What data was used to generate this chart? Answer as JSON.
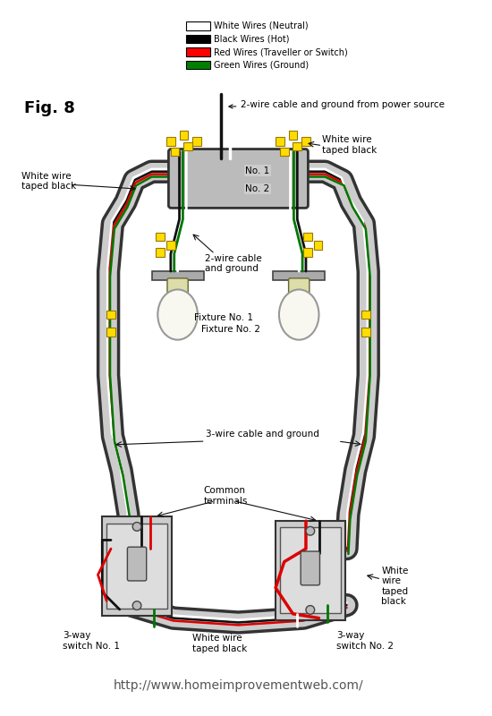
{
  "bg_color": "#ffffff",
  "legend": [
    {
      "color": "#ffffff",
      "label": "White Wires (Neutral)",
      "edge": "#000000"
    },
    {
      "color": "#000000",
      "label": "Black Wires (Hot)",
      "edge": "#000000"
    },
    {
      "color": "#ff0000",
      "label": "Red Wires (Traveller or Switch)",
      "edge": "#000000"
    },
    {
      "color": "#008000",
      "label": "Green Wires (Ground)",
      "edge": "#000000"
    }
  ],
  "wire_colors": {
    "white": "#ffffff",
    "black": "#111111",
    "red": "#dd0000",
    "green": "#007700",
    "yellow": "#ffdd00",
    "gray": "#aaaaaa",
    "light_gray": "#cccccc",
    "dark_gray": "#555555"
  },
  "title": "Fig. 8",
  "url": "http://www.homeimprovementweb.com/"
}
